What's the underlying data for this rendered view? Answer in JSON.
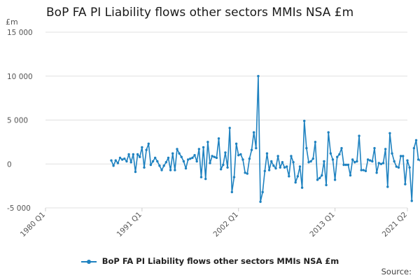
{
  "title": "BoP FA PI Liability flows other sectors MMIs NSA £m",
  "unit_label": "£m",
  "legend_label": "BoP FA PI Liability flows other sectors MMIs NSA £m",
  "source_label": "Source:",
  "colors": {
    "series": "#1f82c0",
    "grid": "#e0e0e0",
    "axis": "#cccccc"
  },
  "chart_data": {
    "type": "line",
    "title": "BoP FA PI Liability flows other sectors MMIs NSA £m",
    "ylabel": "£m",
    "xlabel": "",
    "x_ticks": [
      "1980 Q1",
      "1991 Q1",
      "2002 Q1",
      "2013 Q1",
      "2021 Q2"
    ],
    "y_ticks": [
      -5000,
      0,
      5000,
      10000,
      15000
    ],
    "y_tick_labels": [
      "-5 000",
      "0",
      "5 000",
      "10 000",
      "15 000"
    ],
    "ylim": [
      -5000,
      15000
    ],
    "x_range": [
      "1980 Q1",
      "2021 Q2"
    ],
    "grid": true,
    "legend": "bottom",
    "series": [
      {
        "name": "BoP FA PI Liability flows other sectors MMIs NSA £m",
        "start": "1987 Q3",
        "values": [
          400,
          -200,
          400,
          100,
          700,
          500,
          600,
          300,
          1100,
          200,
          1100,
          -900,
          1100,
          800,
          1900,
          -400,
          1600,
          2300,
          -100,
          300,
          700,
          300,
          -200,
          -700,
          -200,
          200,
          700,
          -700,
          1200,
          -700,
          1700,
          1200,
          800,
          300,
          -500,
          500,
          600,
          700,
          1000,
          300,
          1700,
          -1500,
          1900,
          -1700,
          2500,
          100,
          900,
          800,
          700,
          2900,
          -600,
          -100,
          1300,
          -400,
          4100,
          -3200,
          -1500,
          2300,
          1000,
          1100,
          500,
          -1000,
          -1100,
          600,
          1600,
          3600,
          1800,
          10000,
          -4300,
          -3200,
          -800,
          1200,
          -700,
          300,
          -200,
          -500,
          900,
          -400,
          200,
          -400,
          -300,
          -1400,
          900,
          200,
          -2100,
          -1400,
          -300,
          -2700,
          4900,
          1800,
          200,
          300,
          600,
          2500,
          -1800,
          -1600,
          -1300,
          300,
          -2400,
          3600,
          1200,
          500,
          -1800,
          800,
          1100,
          1800,
          -100,
          -100,
          -100,
          -1300,
          500,
          200,
          300,
          3200,
          -700,
          -700,
          -800,
          500,
          400,
          300,
          1800,
          -1000,
          100,
          0,
          100,
          1700,
          -2600,
          3500,
          1200,
          300,
          -300,
          -400,
          900,
          900,
          -2300,
          400,
          -400,
          -4200,
          1800,
          2700,
          500,
          400,
          -2300,
          -1600,
          -4800,
          300
        ]
      }
    ]
  }
}
